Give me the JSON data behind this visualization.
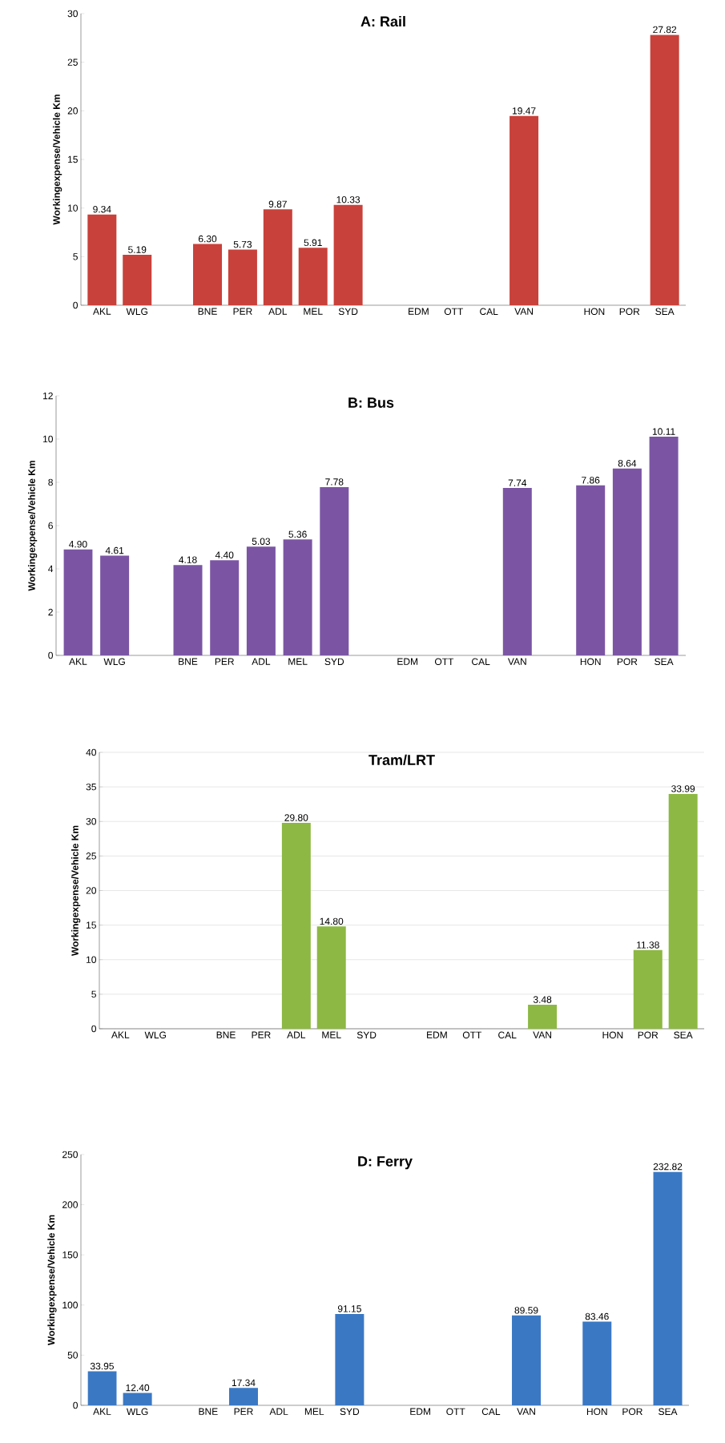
{
  "chart_data": [
    {
      "type": "bar",
      "title": "A: Rail",
      "ylabel": "Workingexpense/Vehicle Km",
      "color": "#c8413a",
      "categories": [
        "AKL",
        "WLG",
        null,
        "BNE",
        "PER",
        "ADL",
        "MEL",
        "SYD",
        null,
        "EDM",
        "OTT",
        "CAL",
        "VAN",
        null,
        "HON",
        "POR",
        "SEA"
      ],
      "values": [
        9.34,
        5.19,
        null,
        6.3,
        5.73,
        9.87,
        5.91,
        10.33,
        null,
        null,
        null,
        null,
        19.47,
        null,
        null,
        null,
        27.82
      ],
      "value_labels": [
        "9.34",
        "5.19",
        null,
        "6.30",
        "5.73",
        "9.87",
        "5.91",
        "10.33",
        null,
        null,
        null,
        null,
        "19.47",
        null,
        null,
        null,
        "27.82"
      ],
      "ylim": [
        0,
        30
      ],
      "yticks": [
        0,
        5,
        10,
        15,
        20,
        25,
        30
      ]
    },
    {
      "type": "bar",
      "title": "B: Bus",
      "ylabel": "Workingexpense/Vehicle Km",
      "color": "#7b55a4",
      "categories": [
        "AKL",
        "WLG",
        null,
        "BNE",
        "PER",
        "ADL",
        "MEL",
        "SYD",
        null,
        "EDM",
        "OTT",
        "CAL",
        "VAN",
        null,
        "HON",
        "POR",
        "SEA"
      ],
      "values": [
        4.9,
        4.61,
        null,
        4.18,
        4.4,
        5.03,
        5.36,
        7.78,
        null,
        null,
        null,
        null,
        7.74,
        null,
        7.86,
        8.64,
        10.11
      ],
      "value_labels": [
        "4.90",
        "4.61",
        null,
        "4.18",
        "4.40",
        "5.03",
        "5.36",
        "7.78",
        null,
        null,
        null,
        null,
        "7.74",
        null,
        "7.86",
        "8.64",
        "10.11"
      ],
      "ylim": [
        0,
        12
      ],
      "yticks": [
        0,
        2,
        4,
        6,
        8,
        10,
        12
      ]
    },
    {
      "type": "bar",
      "title": "Tram/LRT",
      "ylabel": "Workingexpense/Vehicle Km",
      "color": "#8db843",
      "grid": "y",
      "categories": [
        "AKL",
        "WLG",
        null,
        "BNE",
        "PER",
        "ADL",
        "MEL",
        "SYD",
        null,
        "EDM",
        "OTT",
        "CAL",
        "VAN",
        null,
        "HON",
        "POR",
        "SEA"
      ],
      "values": [
        null,
        null,
        null,
        null,
        null,
        29.8,
        14.8,
        null,
        null,
        null,
        null,
        null,
        3.48,
        null,
        null,
        11.38,
        33.99
      ],
      "value_labels": [
        null,
        null,
        null,
        null,
        null,
        "29.80",
        "14.80",
        null,
        null,
        null,
        null,
        null,
        "3.48",
        null,
        null,
        "11.38",
        "33.99"
      ],
      "ylim": [
        0,
        40
      ],
      "yticks": [
        0,
        5,
        10,
        15,
        20,
        25,
        30,
        35,
        40
      ]
    },
    {
      "type": "bar",
      "title": "D: Ferry",
      "ylabel": "Workingexpense/Vehicle Km",
      "color": "#3a78c4",
      "categories": [
        "AKL",
        "WLG",
        null,
        "BNE",
        "PER",
        "ADL",
        "MEL",
        "SYD",
        null,
        "EDM",
        "OTT",
        "CAL",
        "VAN",
        null,
        "HON",
        "POR",
        "SEA"
      ],
      "values": [
        33.95,
        12.4,
        null,
        null,
        17.34,
        null,
        null,
        91.15,
        null,
        null,
        null,
        null,
        89.59,
        null,
        83.46,
        null,
        232.82
      ],
      "value_labels": [
        "33.95",
        "12.40",
        null,
        null,
        "17.34",
        null,
        null,
        "91.15",
        null,
        null,
        null,
        null,
        "89.59",
        null,
        "83.46",
        null,
        "232.82"
      ],
      "ylim": [
        0,
        250
      ],
      "yticks": [
        0,
        50,
        100,
        150,
        200,
        250
      ]
    }
  ]
}
